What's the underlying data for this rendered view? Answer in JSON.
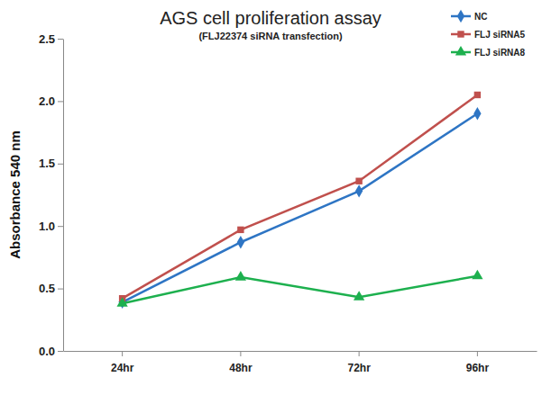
{
  "chart_data": {
    "type": "line",
    "title": "AGS cell proliferation assay",
    "subtitle": "(FLJ22374 siRNA transfection)",
    "y_label": "Absorbance 540 nm",
    "categories": [
      "24hr",
      "48hr",
      "72hr",
      "96hr"
    ],
    "series": [
      {
        "name": "NC",
        "color": "#2e75c4",
        "marker": "diamond",
        "values": [
          0.39,
          0.87,
          1.28,
          1.9
        ]
      },
      {
        "name": "FLJ siRNA5",
        "color": "#c0504d",
        "marker": "square",
        "values": [
          0.42,
          0.97,
          1.36,
          2.05
        ]
      },
      {
        "name": "FLJ siRNA8",
        "color": "#1db04e",
        "marker": "triangle",
        "values": [
          0.38,
          0.59,
          0.43,
          0.6
        ]
      }
    ],
    "ylim": [
      0,
      2.5
    ],
    "yticks": [
      {
        "value": 0,
        "label": "0.0"
      },
      0.5,
      {
        "value": 1,
        "label": "1.0"
      },
      1.5,
      {
        "value": 2,
        "label": "2.0"
      },
      2.5
    ],
    "grid": false,
    "legend": "top-right"
  }
}
